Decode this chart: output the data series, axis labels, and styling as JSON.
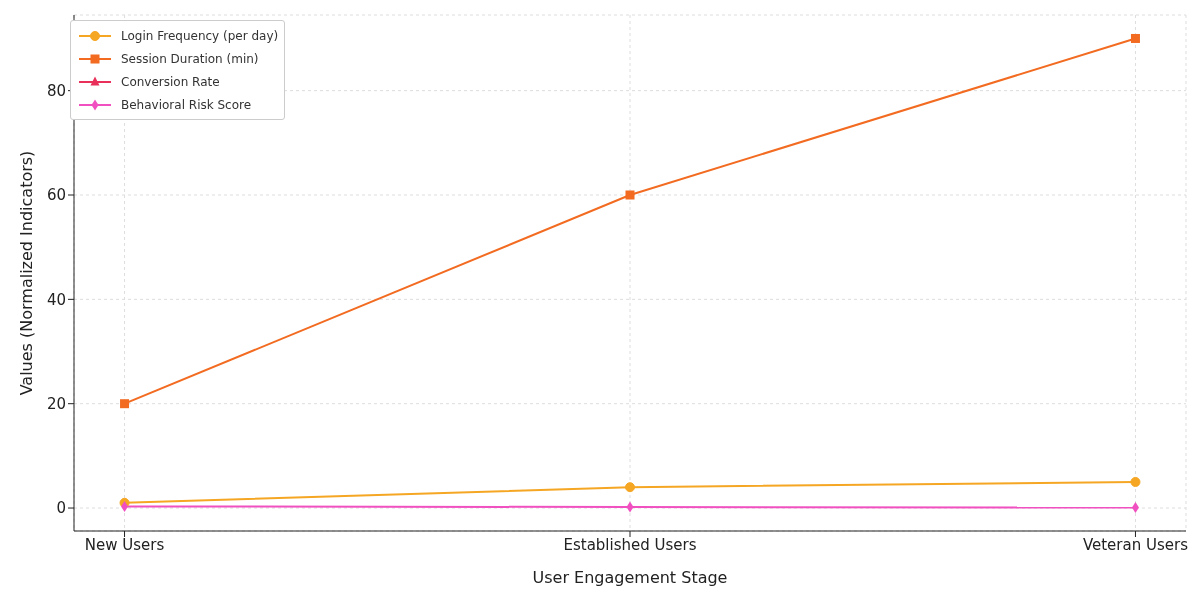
{
  "chart_data": {
    "type": "line",
    "xlabel": "User Engagement Stage",
    "ylabel": "Values (Normalized Indicators)",
    "categories": [
      "New Users",
      "Established Users",
      "Veteran Users"
    ],
    "series": [
      {
        "name": "Login Frequency (per day)",
        "color": "#f5a623",
        "values": [
          1,
          4,
          5
        ],
        "marker": "circle"
      },
      {
        "name": "Session Duration (min)",
        "color": "#f26b21",
        "values": [
          20,
          60,
          90
        ],
        "marker": "square"
      },
      {
        "name": "Conversion Rate",
        "color": "#e8305a",
        "values": [
          null,
          null,
          null
        ],
        "marker": "triangle"
      },
      {
        "name": "Behavioral Risk Score",
        "color": "#f050c0",
        "values": [
          0.3,
          0.2,
          0.1
        ],
        "marker": "diamond"
      }
    ],
    "ylim": [
      -4.4,
      94.5
    ],
    "yticks": [
      0,
      20,
      40,
      60,
      80
    ],
    "grid": true,
    "legend": "top left",
    "line_style": "solid"
  }
}
